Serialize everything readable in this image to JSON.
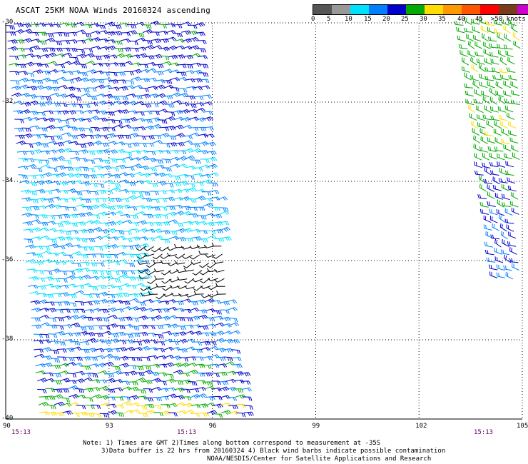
{
  "title": "ASCAT 25KM NOAA Winds 20160324 ascending",
  "legend": {
    "unit_label": ">50 knots",
    "colors": [
      "#555555",
      "#999999",
      "#00e0ff",
      "#0080ff",
      "#0000cc",
      "#00aa00",
      "#ffdd00",
      "#ff9900",
      "#ff5500",
      "#ff0000",
      "#7a3b1a",
      "#cc00cc",
      "#7700aa"
    ],
    "ticks": [
      "0",
      "5",
      "10",
      "15",
      "20",
      "25",
      "30",
      "35",
      "40",
      "45",
      ">50 knots"
    ]
  },
  "axes": {
    "lat_labels": [
      "-30",
      "-32",
      "-34",
      "-36",
      "-38",
      "-40"
    ],
    "lon_labels": [
      "90",
      "93",
      "96",
      "99",
      "102",
      "105"
    ]
  },
  "times": [
    "15:13",
    "15:13",
    "15:13"
  ],
  "notes": [
    "Note: 1) Times are GMT 2)Times along bottom correspond to measurement at -35S",
    "3)Data buffer is 22 hrs from 20160324 4) Black wind barbs indicate possible contamination",
    "NOAA/NESDIS/Center for Satellite Applications and Research"
  ],
  "map_data": {
    "lat_range": [
      -40,
      -30
    ],
    "lon_range": [
      90,
      105
    ],
    "swaths": [
      {
        "name": "west swath",
        "lon_range_north": [
          90,
          95.5
        ],
        "lon_range_south": [
          91,
          97
        ],
        "lat_range": [
          -40,
          -30
        ]
      },
      {
        "name": "east swath",
        "lon_range_north": [
          103.3,
          105
        ],
        "lat_range": [
          -36.5,
          -30
        ]
      }
    ],
    "contamination_region": {
      "lat_range": [
        -37,
        -35.5
      ],
      "lon_range": [
        94,
        96.5
      ]
    },
    "barb_colors": {
      "contaminated": "#000000",
      "lt10": "#00e0ff",
      "10to15": "#0080ff",
      "15to20": "#0000cc",
      "20to25": "#00aa00",
      "25to30": "#ffdd00"
    }
  }
}
